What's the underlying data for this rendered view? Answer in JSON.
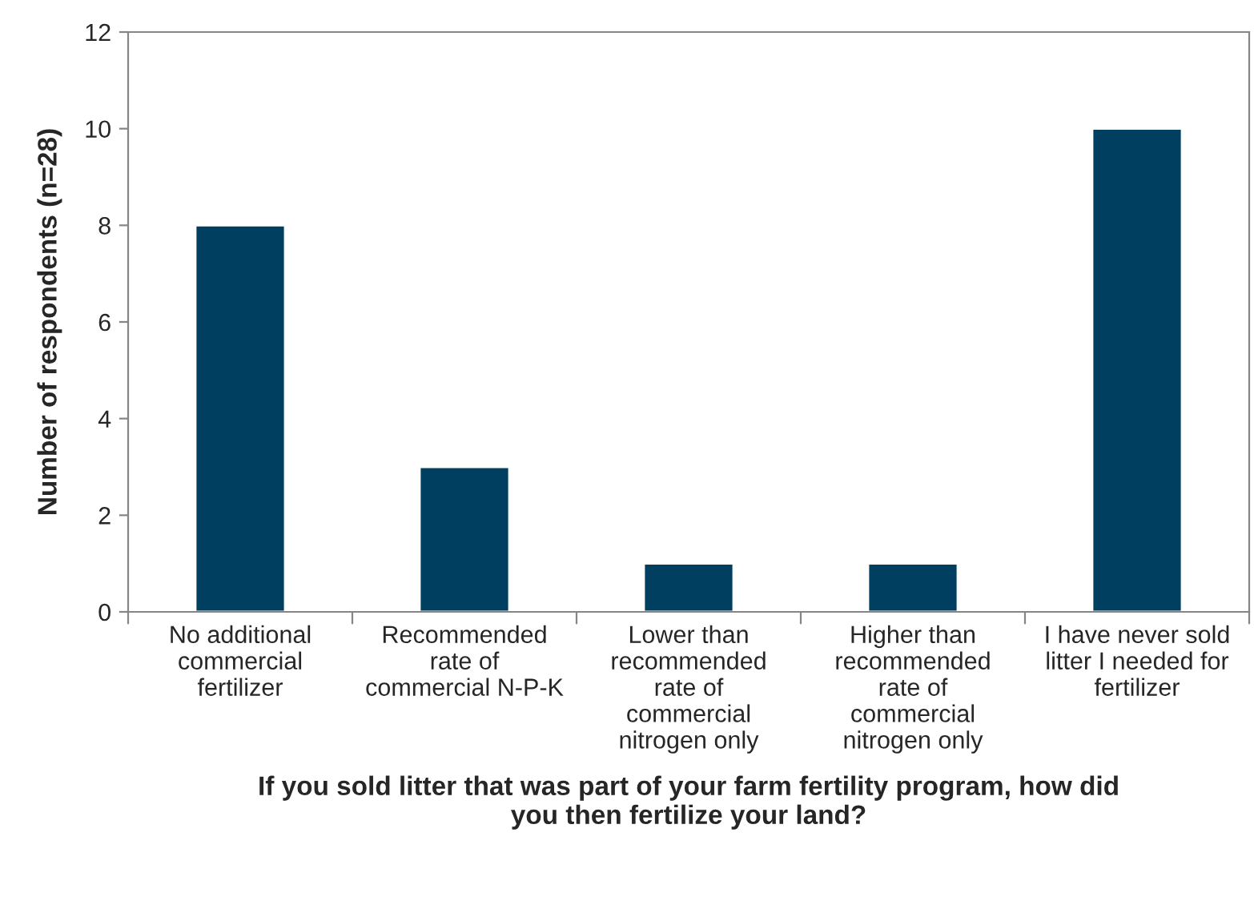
{
  "chart_data": {
    "type": "bar",
    "categories": [
      "No additional\ncommercial\nfertilizer",
      "Recommended\nrate of\ncommercial N-P-K",
      "Lower than\nrecommended\nrate of\ncommercial\nnitrogen only",
      "Higher than\nrecommended\nrate of\ncommercial\nnitrogen only",
      "I have never sold\nlitter I needed for\nfertilizer"
    ],
    "values": [
      8,
      3,
      1,
      1,
      10
    ],
    "color": "#003f5f",
    "xlabel": "If you sold litter that was part of your farm fertility program, how did\nyou then fertilize your land?",
    "ylabel": "Number of respondents (n=28)",
    "ylim": [
      0,
      12
    ],
    "yticks": [
      0,
      2,
      4,
      6,
      8,
      10,
      12
    ],
    "grid": false
  }
}
